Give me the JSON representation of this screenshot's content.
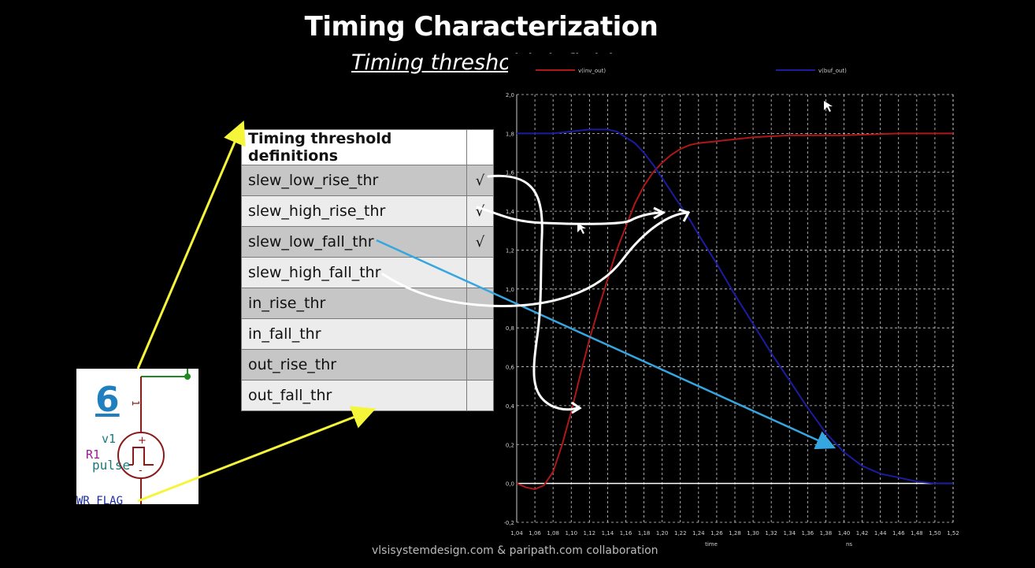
{
  "slide": {
    "title": "Timing Characterization",
    "subtitle": "Timing threshold definitions",
    "footer": "vlsisystemdesign.com & paripath.com collaboration"
  },
  "table": {
    "header": "Timing threshold definitions",
    "rows": [
      {
        "label": "slew_low_rise_thr",
        "check": "√"
      },
      {
        "label": "slew_high_rise_thr",
        "check": "√"
      },
      {
        "label": "slew_low_fall_thr",
        "check": "√"
      },
      {
        "label": "slew_high_fall_thr",
        "check": ""
      },
      {
        "label": "in_rise_thr",
        "check": ""
      },
      {
        "label": "in_fall_thr",
        "check": ""
      },
      {
        "label": "out_rise_thr",
        "check": ""
      },
      {
        "label": "out_fall_thr",
        "check": ""
      }
    ]
  },
  "schematic": {
    "number": "6",
    "source_name": "v1",
    "resistor_label": "R1",
    "source_type": "pulse",
    "flag_text": "WR_FLAG",
    "pin_label": "1"
  },
  "chart_data": {
    "type": "line",
    "title": "",
    "xlabel": "time",
    "x_unit": "ns",
    "ylabel": "",
    "xlim": [
      1.04,
      1.52
    ],
    "ylim": [
      -0.2,
      2.0
    ],
    "grid": true,
    "legend": "top",
    "x_ticks": [
      "1,04",
      "1,06",
      "1,08",
      "1,10",
      "1,12",
      "1,14",
      "1,16",
      "1,18",
      "1,20",
      "1,22",
      "1,24",
      "1,26",
      "1,28",
      "1,30",
      "1,32",
      "1,34",
      "1,36",
      "1,38",
      "1,40",
      "1,42",
      "1,44",
      "1,46",
      "1,48",
      "1,50",
      "1,52"
    ],
    "y_ticks": [
      "-0,2",
      "0,0",
      "0,2",
      "0,4",
      "0,6",
      "0,8",
      "1,0",
      "1,2",
      "1,4",
      "1,6",
      "1,8",
      "2,0"
    ],
    "series": [
      {
        "name": "v(inv_out)",
        "color": "#b01818",
        "x": [
          1.04,
          1.05,
          1.06,
          1.07,
          1.08,
          1.09,
          1.1,
          1.11,
          1.12,
          1.13,
          1.14,
          1.15,
          1.16,
          1.17,
          1.18,
          1.19,
          1.2,
          1.21,
          1.22,
          1.23,
          1.24,
          1.26,
          1.28,
          1.3,
          1.34,
          1.4,
          1.46,
          1.52
        ],
        "y": [
          0.0,
          -0.02,
          -0.03,
          -0.01,
          0.06,
          0.2,
          0.37,
          0.56,
          0.74,
          0.9,
          1.05,
          1.2,
          1.32,
          1.44,
          1.53,
          1.6,
          1.65,
          1.69,
          1.72,
          1.74,
          1.75,
          1.76,
          1.77,
          1.78,
          1.79,
          1.79,
          1.8,
          1.8
        ]
      },
      {
        "name": "v(buf_out)",
        "color": "#1c1ca0",
        "x": [
          1.04,
          1.08,
          1.1,
          1.12,
          1.14,
          1.15,
          1.16,
          1.17,
          1.18,
          1.19,
          1.2,
          1.21,
          1.22,
          1.23,
          1.24,
          1.26,
          1.28,
          1.3,
          1.32,
          1.34,
          1.36,
          1.38,
          1.4,
          1.42,
          1.44,
          1.46,
          1.48,
          1.5,
          1.52
        ],
        "y": [
          1.8,
          1.8,
          1.81,
          1.82,
          1.82,
          1.81,
          1.78,
          1.75,
          1.7,
          1.64,
          1.57,
          1.5,
          1.43,
          1.36,
          1.28,
          1.13,
          0.97,
          0.82,
          0.67,
          0.53,
          0.39,
          0.26,
          0.16,
          0.09,
          0.05,
          0.03,
          0.01,
          0.0,
          0.0
        ]
      }
    ]
  },
  "colors": {
    "highlight_arrow": "#f5f53a",
    "annotation_line": "#35a6e0",
    "chart_bg": "#000000",
    "grid": "#d0d0d0"
  }
}
